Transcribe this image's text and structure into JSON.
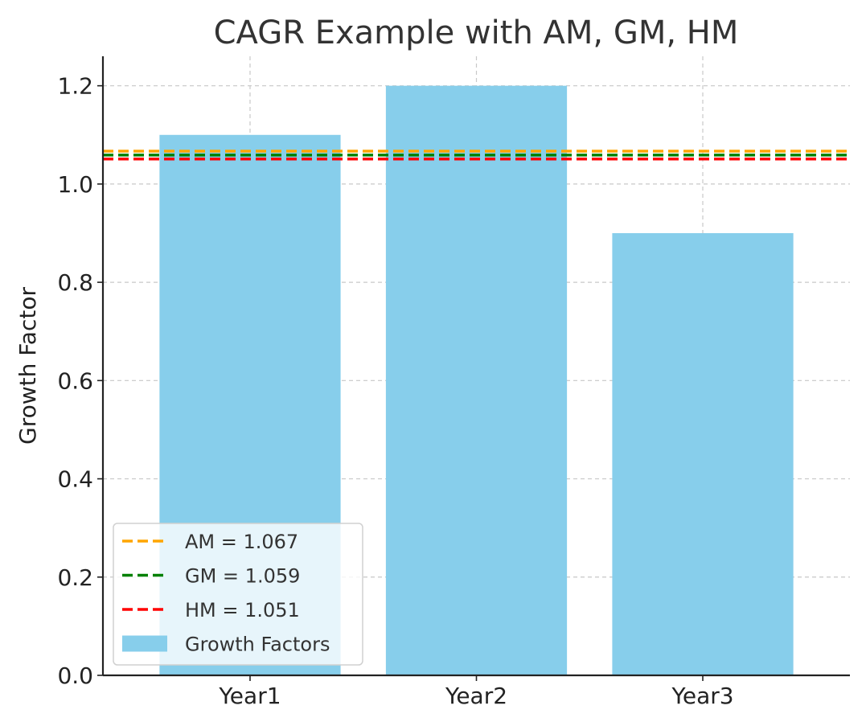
{
  "chart_data": {
    "type": "bar",
    "title": "CAGR Example with AM, GM, HM",
    "xlabel": "",
    "ylabel": "Growth Factor",
    "categories": [
      "Year1",
      "Year2",
      "Year3"
    ],
    "series": [
      {
        "name": "Growth Factors",
        "values": [
          1.1,
          1.2,
          0.9
        ],
        "color": "#87CEEB"
      }
    ],
    "reference_lines": [
      {
        "name": "AM = 1.067",
        "value": 1.067,
        "color": "#FFA500",
        "style": "dashed"
      },
      {
        "name": "GM = 1.059",
        "value": 1.059,
        "color": "#008000",
        "style": "dashed"
      },
      {
        "name": "HM = 1.051",
        "value": 1.051,
        "color": "#FF0000",
        "style": "dashed"
      }
    ],
    "ylim": [
      0,
      1.26
    ],
    "yticks": [
      "0.0",
      "0.2",
      "0.4",
      "0.6",
      "0.8",
      "1.0",
      "1.2"
    ],
    "grid": true,
    "legend_position": "lower-left"
  }
}
